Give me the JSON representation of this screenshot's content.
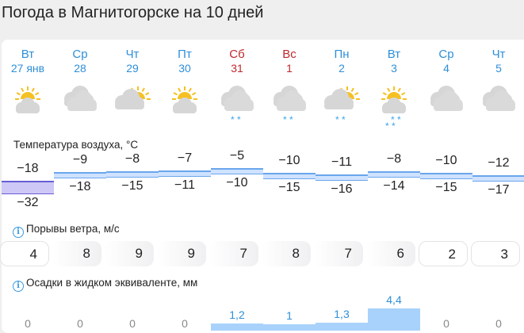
{
  "title": "Погода в Магнитогорске на 10 дней",
  "days": [
    {
      "dow": "Вт",
      "date": "27 янв",
      "weekend": false,
      "icon": "sun-cloud",
      "snow": 0,
      "tmax": -18,
      "tmin": -32,
      "wind": 4,
      "precip": "0",
      "precip_value": 0
    },
    {
      "dow": "Ср",
      "date": "28",
      "weekend": false,
      "icon": "cloudy",
      "snow": 0,
      "tmax": -9,
      "tmin": -18,
      "wind": 8,
      "precip": "0",
      "precip_value": 0
    },
    {
      "dow": "Чт",
      "date": "29",
      "weekend": false,
      "icon": "cloud-sun",
      "snow": 0,
      "tmax": -8,
      "tmin": -15,
      "wind": 9,
      "precip": "0",
      "precip_value": 0
    },
    {
      "dow": "Пт",
      "date": "30",
      "weekend": false,
      "icon": "sun-cloud",
      "snow": 0,
      "tmax": -7,
      "tmin": -11,
      "wind": 9,
      "precip": "0",
      "precip_value": 0
    },
    {
      "dow": "Сб",
      "date": "31",
      "weekend": true,
      "icon": "cloudy-snow",
      "snow": 2,
      "tmax": -5,
      "tmin": -10,
      "wind": 7,
      "precip": "1,2",
      "precip_value": 1.2
    },
    {
      "dow": "Вс",
      "date": "1",
      "weekend": true,
      "icon": "cloudy-snow",
      "snow": 2,
      "tmax": -10,
      "tmin": -15,
      "wind": 8,
      "precip": "1",
      "precip_value": 1
    },
    {
      "dow": "Пн",
      "date": "2",
      "weekend": false,
      "icon": "cloud-sun-snow",
      "snow": 2,
      "tmax": -11,
      "tmin": -16,
      "wind": 7,
      "precip": "1,3",
      "precip_value": 1.3
    },
    {
      "dow": "Вт",
      "date": "3",
      "weekend": false,
      "icon": "sun-cloud-snow",
      "snow": 4,
      "tmax": -8,
      "tmin": -14,
      "wind": 6,
      "precip": "4,4",
      "precip_value": 4.4
    },
    {
      "dow": "Ср",
      "date": "4",
      "weekend": false,
      "icon": "cloudy",
      "snow": 0,
      "tmax": -10,
      "tmin": -15,
      "wind": 2,
      "precip": "0",
      "precip_value": 0
    },
    {
      "dow": "Чт",
      "date": "5",
      "weekend": false,
      "icon": "cloudy",
      "snow": 0,
      "tmax": -12,
      "tmin": -17,
      "wind": 3,
      "precip": "0",
      "precip_value": 0
    }
  ],
  "labels": {
    "temperature": "Температура воздуха, °C",
    "wind": "Порывы ветра, м/с",
    "precip": "Осадки в жидком эквиваленте, мм",
    "info": "i"
  },
  "colors": {
    "weekday": "#2f8fd8",
    "weekend": "#c0282d",
    "band": "#cfe2ff",
    "band_first": "#cdc8f5",
    "precip": "#a8d2fb"
  }
}
